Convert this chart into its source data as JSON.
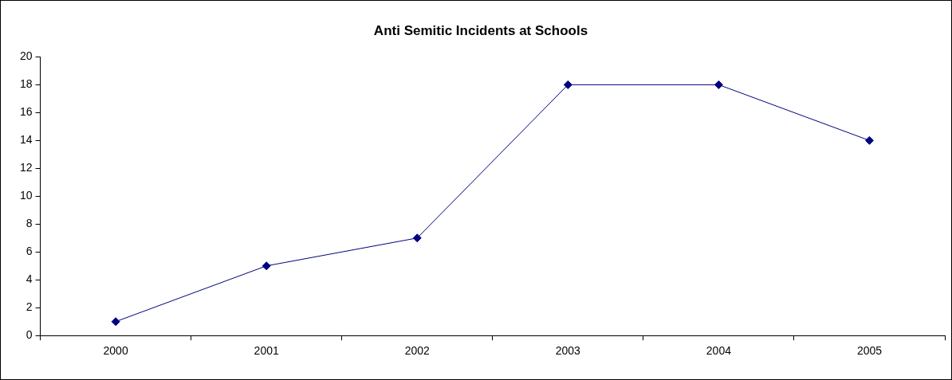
{
  "chart_data": {
    "type": "line",
    "title": "Anti Semitic Incidents at Schools",
    "categories": [
      "2000",
      "2001",
      "2002",
      "2003",
      "2004",
      "2005"
    ],
    "series": [
      {
        "color": "#000080",
        "values": [
          1,
          5,
          7,
          18,
          18,
          14
        ]
      }
    ],
    "ylim": [
      0,
      20
    ],
    "yticks": [
      0,
      2,
      4,
      6,
      8,
      10,
      12,
      14,
      16,
      18,
      20
    ],
    "grid": false,
    "legend": false,
    "marker": "diamond",
    "line_style": "solid"
  }
}
